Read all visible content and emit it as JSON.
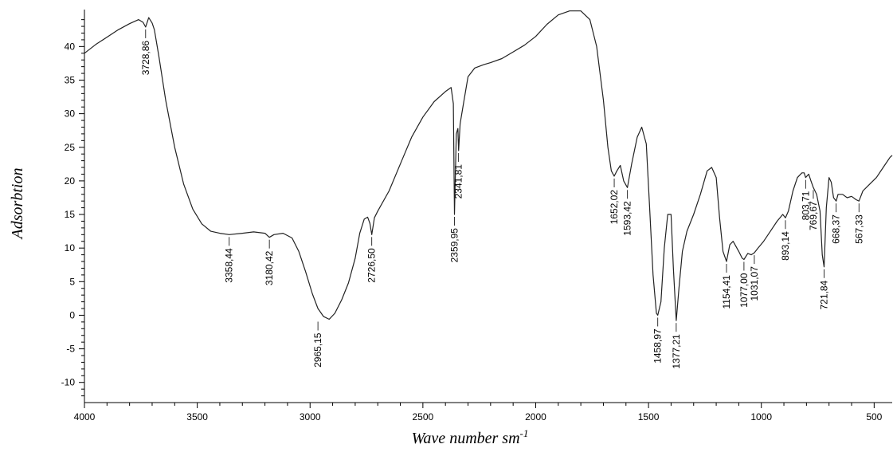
{
  "chart_data": {
    "type": "line",
    "title": "",
    "xlabel": "Wave number sm",
    "xlabel_sup": "-1",
    "ylabel": "Adsorbtion",
    "xlim": [
      4000,
      420
    ],
    "ylim": [
      -13,
      45.5
    ],
    "x_reversed": true,
    "grid": false,
    "x_ticks": [
      4000,
      3500,
      3000,
      2500,
      2000,
      1500,
      1000,
      500
    ],
    "y_ticks": [
      40,
      35,
      30,
      25,
      20,
      15,
      10,
      5,
      0,
      -5,
      -10
    ],
    "series": [
      {
        "points": [
          [
            4000,
            39
          ],
          [
            3950,
            40.3
          ],
          [
            3900,
            41.4
          ],
          [
            3850,
            42.5
          ],
          [
            3800,
            43.4
          ],
          [
            3760,
            44.0
          ],
          [
            3740,
            43.6
          ],
          [
            3728.86,
            42.9
          ],
          [
            3715,
            44.3
          ],
          [
            3700,
            43.5
          ],
          [
            3690,
            42.5
          ],
          [
            3670,
            38.5
          ],
          [
            3640,
            32
          ],
          [
            3600,
            25
          ],
          [
            3560,
            19.5
          ],
          [
            3520,
            15.8
          ],
          [
            3480,
            13.6
          ],
          [
            3440,
            12.5
          ],
          [
            3400,
            12.2
          ],
          [
            3358.44,
            12.0
          ],
          [
            3300,
            12.2
          ],
          [
            3250,
            12.4
          ],
          [
            3200,
            12.2
          ],
          [
            3180.42,
            11.6
          ],
          [
            3160,
            12.0
          ],
          [
            3120,
            12.2
          ],
          [
            3080,
            11.5
          ],
          [
            3050,
            9.5
          ],
          [
            3020,
            6.5
          ],
          [
            2990,
            3.2
          ],
          [
            2965.15,
            1.0
          ],
          [
            2940,
            -0.2
          ],
          [
            2915,
            -0.6
          ],
          [
            2890,
            0.3
          ],
          [
            2860,
            2.3
          ],
          [
            2830,
            4.8
          ],
          [
            2800,
            8.5
          ],
          [
            2780,
            12.2
          ],
          [
            2760,
            14.3
          ],
          [
            2745,
            14.6
          ],
          [
            2735,
            13.7
          ],
          [
            2726.5,
            12.0
          ],
          [
            2715,
            14.5
          ],
          [
            2700,
            15.5
          ],
          [
            2650,
            18.5
          ],
          [
            2600,
            22.5
          ],
          [
            2550,
            26.5
          ],
          [
            2500,
            29.5
          ],
          [
            2450,
            31.8
          ],
          [
            2400,
            33.3
          ],
          [
            2375,
            33.9
          ],
          [
            2365,
            31.5
          ],
          [
            2359.95,
            15.0
          ],
          [
            2352,
            27.0
          ],
          [
            2345,
            27.8
          ],
          [
            2341.81,
            24.5
          ],
          [
            2335,
            28.5
          ],
          [
            2320,
            31.5
          ],
          [
            2300,
            35.5
          ],
          [
            2270,
            36.8
          ],
          [
            2230,
            37.3
          ],
          [
            2200,
            37.6
          ],
          [
            2150,
            38.2
          ],
          [
            2100,
            39.2
          ],
          [
            2050,
            40.2
          ],
          [
            2000,
            41.5
          ],
          [
            1950,
            43.3
          ],
          [
            1900,
            44.7
          ],
          [
            1850,
            45.3
          ],
          [
            1800,
            45.3
          ],
          [
            1760,
            44.0
          ],
          [
            1730,
            40.0
          ],
          [
            1700,
            32.0
          ],
          [
            1680,
            25.0
          ],
          [
            1665,
            21.5
          ],
          [
            1652.02,
            20.7
          ],
          [
            1640,
            21.5
          ],
          [
            1625,
            22.3
          ],
          [
            1610,
            20.0
          ],
          [
            1593.42,
            19.0
          ],
          [
            1575,
            22.5
          ],
          [
            1550,
            26.5
          ],
          [
            1530,
            28.0
          ],
          [
            1510,
            25.5
          ],
          [
            1495,
            16.0
          ],
          [
            1480,
            6.0
          ],
          [
            1465,
            0.3
          ],
          [
            1458.97,
            0.0
          ],
          [
            1445,
            2.0
          ],
          [
            1430,
            10.0
          ],
          [
            1415,
            15.0
          ],
          [
            1400,
            15.0
          ],
          [
            1390,
            7.0
          ],
          [
            1377.21,
            -0.8
          ],
          [
            1365,
            4.0
          ],
          [
            1350,
            9.5
          ],
          [
            1330,
            12.5
          ],
          [
            1300,
            15.0
          ],
          [
            1270,
            18.0
          ],
          [
            1240,
            21.5
          ],
          [
            1220,
            22.0
          ],
          [
            1200,
            20.5
          ],
          [
            1185,
            14.5
          ],
          [
            1170,
            9.5
          ],
          [
            1154.41,
            8.0
          ],
          [
            1140,
            10.5
          ],
          [
            1125,
            11.0
          ],
          [
            1100,
            9.5
          ],
          [
            1085,
            8.5
          ],
          [
            1077,
            8.3
          ],
          [
            1060,
            9.2
          ],
          [
            1045,
            9.0
          ],
          [
            1031.07,
            9.3
          ],
          [
            1015,
            10.0
          ],
          [
            990,
            11.0
          ],
          [
            960,
            12.5
          ],
          [
            930,
            14.0
          ],
          [
            905,
            15.0
          ],
          [
            893.14,
            14.5
          ],
          [
            880,
            15.5
          ],
          [
            860,
            18.5
          ],
          [
            840,
            20.5
          ],
          [
            820,
            21.2
          ],
          [
            810,
            21.2
          ],
          [
            803.71,
            20.5
          ],
          [
            790,
            21.0
          ],
          [
            780,
            20.0
          ],
          [
            769.67,
            19.0
          ],
          [
            755,
            18.0
          ],
          [
            740,
            15.5
          ],
          [
            730,
            9.0
          ],
          [
            721.84,
            7.2
          ],
          [
            712,
            16.0
          ],
          [
            700,
            20.5
          ],
          [
            690,
            19.8
          ],
          [
            680,
            17.5
          ],
          [
            668.37,
            17.0
          ],
          [
            660,
            18.0
          ],
          [
            640,
            18.0
          ],
          [
            620,
            17.5
          ],
          [
            600,
            17.7
          ],
          [
            580,
            17.2
          ],
          [
            567.33,
            17.0
          ],
          [
            550,
            18.5
          ],
          [
            520,
            19.5
          ],
          [
            490,
            20.5
          ],
          [
            460,
            22.0
          ],
          [
            430,
            23.5
          ],
          [
            420,
            23.8
          ]
        ]
      }
    ],
    "peaks": [
      {
        "label": "3728,86",
        "x": 3728.86,
        "y": 42.9
      },
      {
        "label": "3358,44",
        "x": 3358.44,
        "y": 12.0
      },
      {
        "label": "3180,42",
        "x": 3180.42,
        "y": 11.6
      },
      {
        "label": "2965,15",
        "x": 2965.15,
        "y": -0.6
      },
      {
        "label": "2726,50",
        "x": 2726.5,
        "y": 12.0
      },
      {
        "label": "2359,95",
        "x": 2359.95,
        "y": 15.0
      },
      {
        "label": "2341,81",
        "x": 2341.81,
        "y": 24.5
      },
      {
        "label": "1652,02",
        "x": 1652.02,
        "y": 20.7
      },
      {
        "label": "1593,42",
        "x": 1593.42,
        "y": 19.0
      },
      {
        "label": "1458,97",
        "x": 1458.97,
        "y": 0.0
      },
      {
        "label": "1377,21",
        "x": 1377.21,
        "y": -0.8
      },
      {
        "label": "1154,41",
        "x": 1154.41,
        "y": 8.0
      },
      {
        "label": "1077,00",
        "x": 1077.0,
        "y": 8.3
      },
      {
        "label": "1031,07",
        "x": 1031.07,
        "y": 9.3
      },
      {
        "label": "893,14",
        "x": 893.14,
        "y": 14.5
      },
      {
        "label": "803,71",
        "x": 803.71,
        "y": 20.5
      },
      {
        "label": "769,67",
        "x": 769.67,
        "y": 19.0
      },
      {
        "label": "721,84",
        "x": 721.84,
        "y": 7.2
      },
      {
        "label": "668,37",
        "x": 668.37,
        "y": 17.0
      },
      {
        "label": "567,33",
        "x": 567.33,
        "y": 17.0
      }
    ]
  }
}
